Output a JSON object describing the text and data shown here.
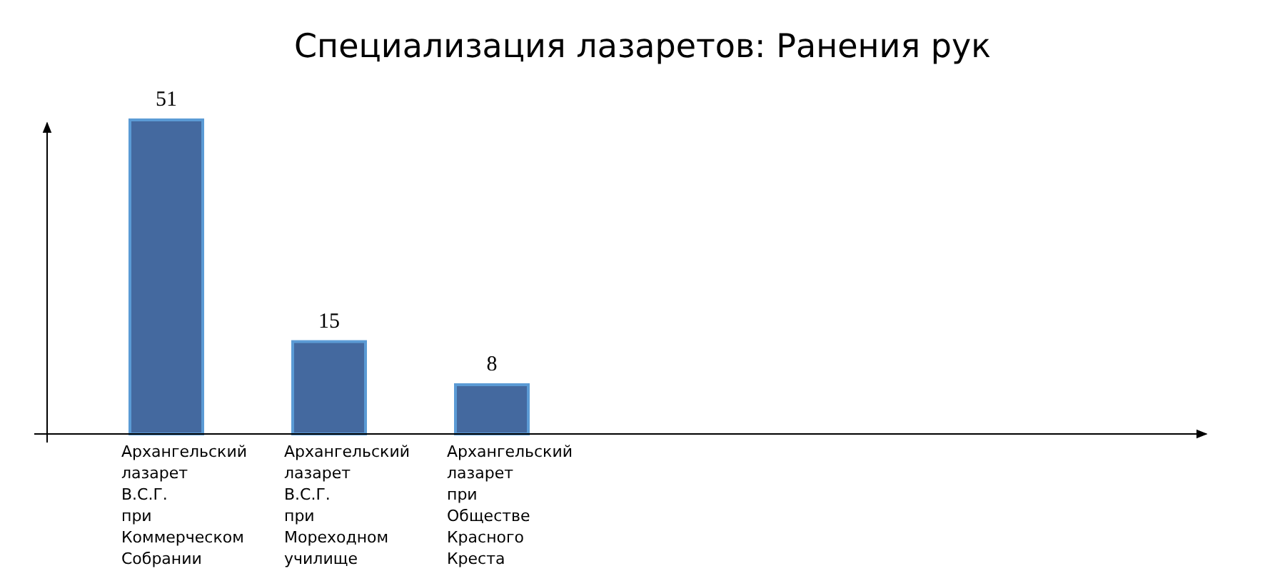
{
  "chart_data": {
    "type": "bar",
    "title": "Специализация лазаретов: Ранения рук",
    "categories": [
      "Архангельский лазарет В.С.Г. при Коммерческом Собрании",
      "Архангельский лазарет В.С.Г. при Мореходном училище",
      "Архангельский лазарет при Обществе Красного Креста"
    ],
    "values": [
      51,
      15,
      8
    ],
    "color": "#44699f",
    "data_labels": true
  }
}
